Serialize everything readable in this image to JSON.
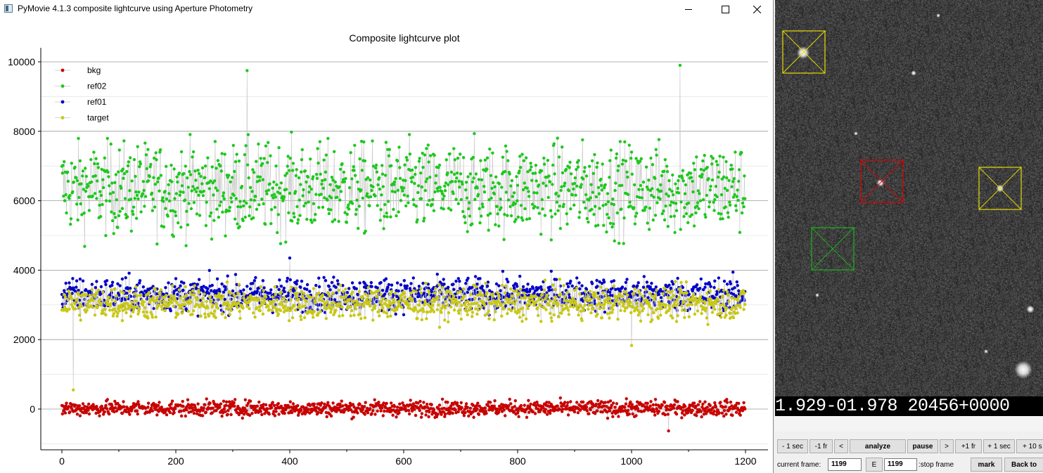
{
  "window": {
    "title": "PyMovie 4.1.3 composite lightcurve using Aperture Photometry"
  },
  "chart_data": {
    "type": "scatter",
    "title": "Composite lightcurve plot",
    "xlabel": "",
    "ylabel": "",
    "xlim": [
      0,
      1200
    ],
    "ylim": [
      -1200,
      10200
    ],
    "xticks": [
      "0",
      "200",
      "400",
      "600",
      "800",
      "1000",
      "1200"
    ],
    "yticks": [
      "0",
      "2000",
      "4000",
      "6000",
      "8000",
      "10000"
    ],
    "grid": "horizontal",
    "legend": "top-left",
    "point_count_per_series": 1200,
    "series": [
      {
        "name": "bkg",
        "color": "#c80000",
        "mean": 20,
        "spread": 200,
        "notable": [
          {
            "x": 1065,
            "y": -630
          }
        ]
      },
      {
        "name": "ref02",
        "color": "#1ec81e",
        "mean": 6350,
        "spread": 1150,
        "notable": [
          {
            "x": 1085,
            "y": 9900
          },
          {
            "x": 325,
            "y": 9750
          }
        ]
      },
      {
        "name": "ref01",
        "color": "#0000c8",
        "mean": 3300,
        "spread": 430,
        "notable": [
          {
            "x": 400,
            "y": 4350
          }
        ]
      },
      {
        "name": "target",
        "color": "#c8c814",
        "mean": 3050,
        "spread": 420,
        "notable": [
          {
            "x": 20,
            "y": 550
          },
          {
            "x": 1000,
            "y": 1830
          }
        ]
      }
    ]
  },
  "image_panel": {
    "timestamp": "1.929-01.978 20456+0000",
    "apertures": [
      {
        "color": "#e6dc00"
      },
      {
        "color": "#e00000"
      },
      {
        "color": "#e6dc00"
      },
      {
        "color": "#19b419"
      }
    ]
  },
  "controls": {
    "minus_1sec": "- 1 sec",
    "minus_1fr": "-1 fr",
    "prev": "<",
    "analyze": "analyze",
    "pause": "pause",
    "next": ">",
    "plus_1fr": "+1 fr",
    "plus_1sec": "+ 1 sec",
    "plus_10sec": "+ 10 s",
    "current_frame_label": "current frame:",
    "current_frame_value": "1199",
    "e_button": "E",
    "stop_frame_value": "1199",
    "stop_frame_label": ":stop frame",
    "mark": "mark",
    "back_to": "Back to"
  }
}
